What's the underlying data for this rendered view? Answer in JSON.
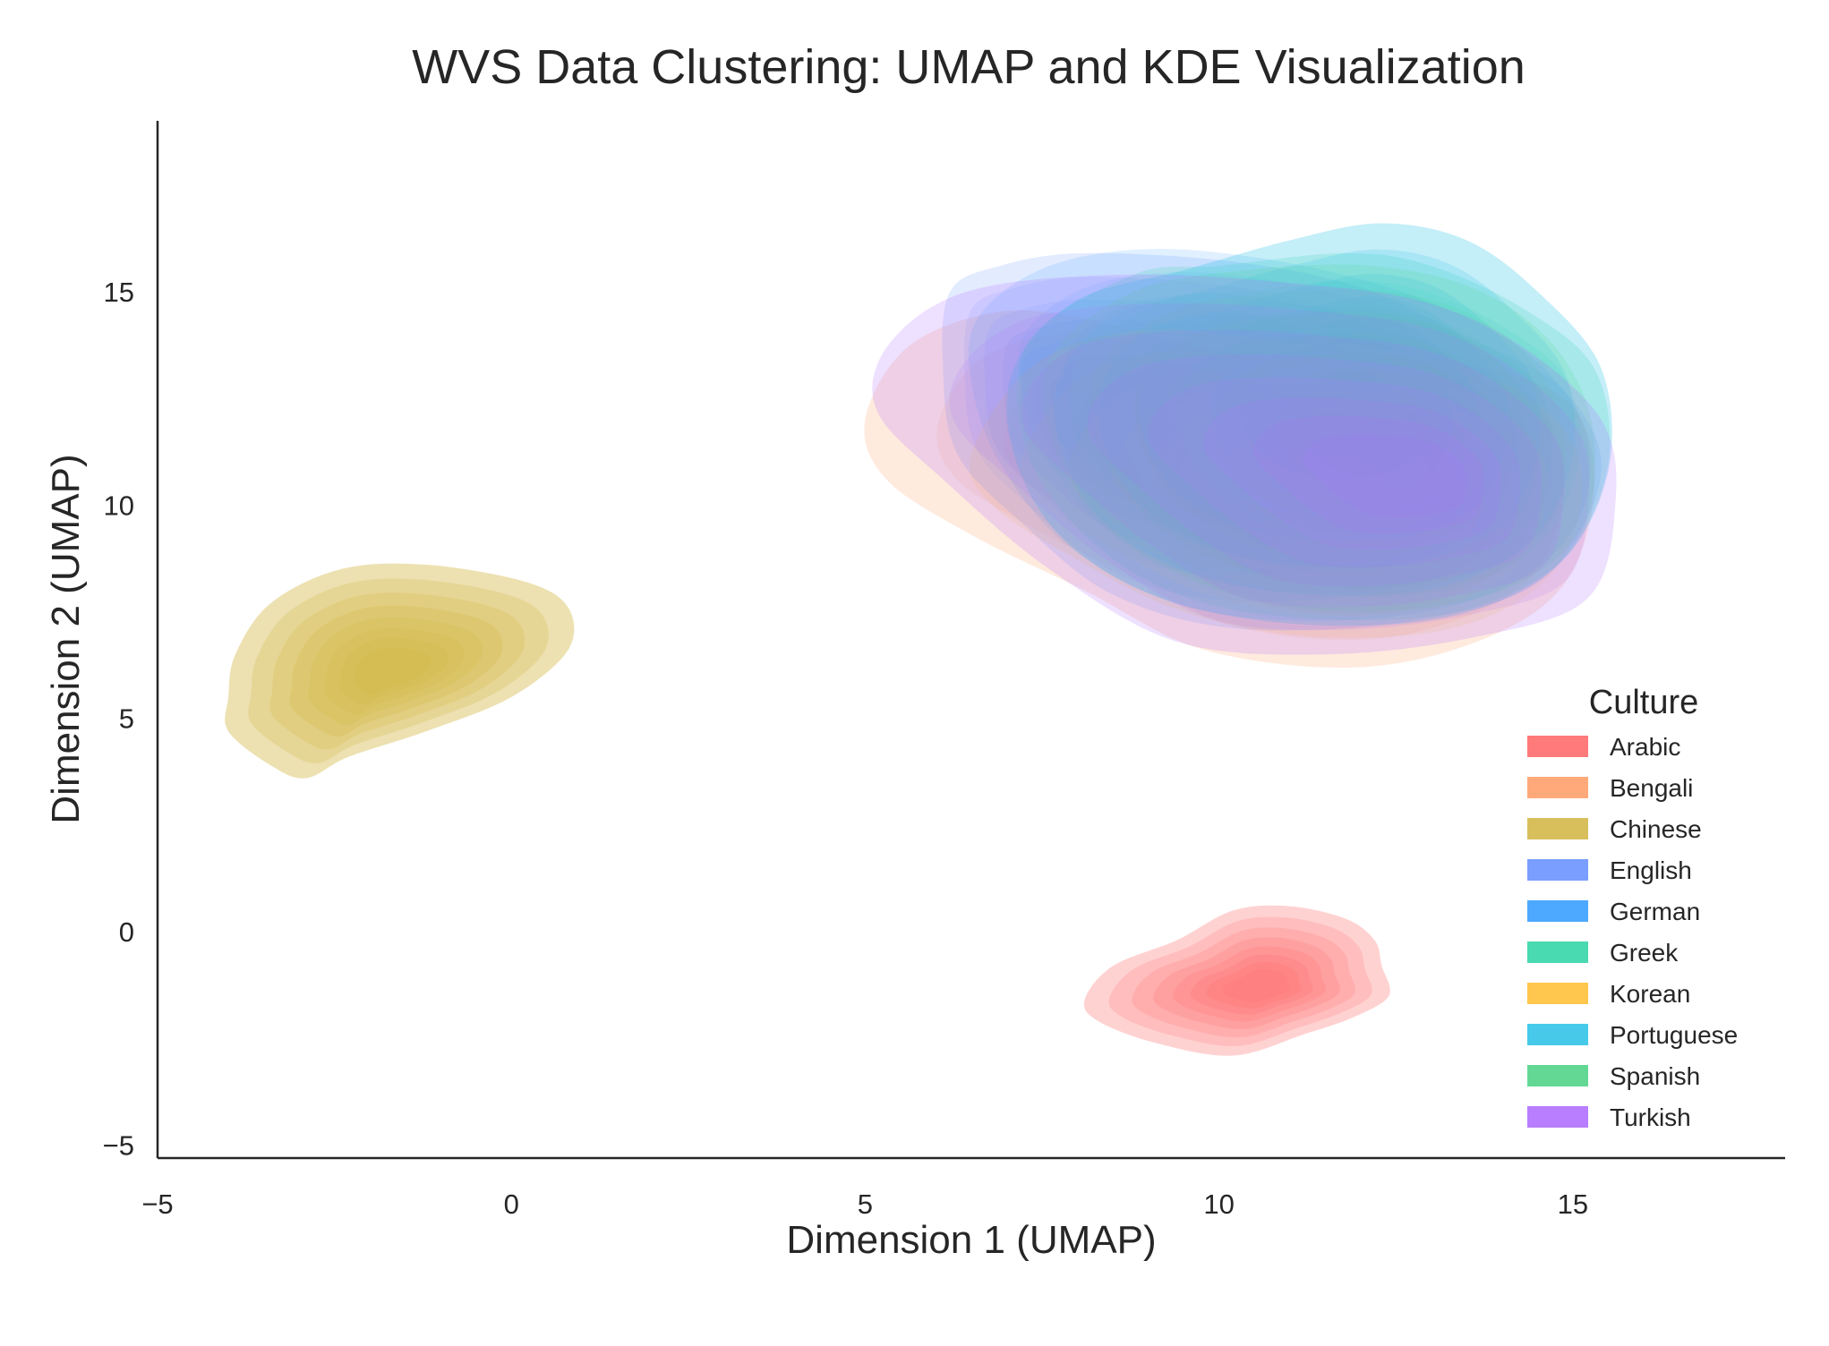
{
  "chart_data": {
    "type": "kde_density",
    "title": "WVS Data Clustering: UMAP and KDE Visualization",
    "xlabel": "Dimension 1 (UMAP)",
    "ylabel": "Dimension 2 (UMAP)",
    "xlim": [
      -5,
      18
    ],
    "ylim": [
      -5.3,
      19
    ],
    "xticks": [
      -5,
      0,
      5,
      10,
      15
    ],
    "yticks": [
      -5,
      0,
      5,
      10,
      15
    ],
    "xtick_labels": [
      "−5",
      "0",
      "5",
      "10",
      "15"
    ],
    "ytick_labels": [
      "−5",
      "0",
      "5",
      "10",
      "15"
    ],
    "grid": false,
    "legend": {
      "title": "Culture",
      "placement": "right"
    },
    "series": [
      {
        "name": "Arabic",
        "color": "#FF6B6B",
        "center": [
          10.6,
          -1.3
        ],
        "spread": [
          2.05,
          1.8
        ],
        "opacity": 0.36,
        "outline": [
          [
            8.1,
            -1.6
          ],
          [
            8.5,
            -0.8
          ],
          [
            9.4,
            -0.2
          ],
          [
            10.2,
            0.5
          ],
          [
            11.0,
            0.6
          ],
          [
            11.8,
            0.3
          ],
          [
            12.2,
            -0.2
          ],
          [
            12.3,
            -0.8
          ],
          [
            12.4,
            -1.5
          ],
          [
            11.9,
            -2.0
          ],
          [
            11.2,
            -2.4
          ],
          [
            10.2,
            -2.9
          ],
          [
            9.1,
            -2.6
          ],
          [
            8.3,
            -2.1
          ]
        ]
      },
      {
        "name": "Bengali",
        "color": "#FFA06B",
        "center": [
          12.3,
          10.8
        ],
        "spread": [
          5.0,
          5.0
        ],
        "opacity": 0.26,
        "outline": [
          [
            5.0,
            12.0
          ],
          [
            5.6,
            13.7
          ],
          [
            6.8,
            14.5
          ],
          [
            8.0,
            14.4
          ],
          [
            10.0,
            13.6
          ],
          [
            12.0,
            13.3
          ],
          [
            13.8,
            13.2
          ],
          [
            15.0,
            12.3
          ],
          [
            15.3,
            10.4
          ],
          [
            14.9,
            8.2
          ],
          [
            13.8,
            6.9
          ],
          [
            12.0,
            6.2
          ],
          [
            9.8,
            6.6
          ],
          [
            8.1,
            8.0
          ],
          [
            6.5,
            9.3
          ],
          [
            5.3,
            10.6
          ]
        ]
      },
      {
        "name": "Chinese",
        "color": "#D4B84A",
        "center": [
          -1.7,
          6.1
        ],
        "spread": [
          2.65,
          2.6
        ],
        "opacity": 0.5,
        "outline": [
          [
            -4.0,
            5.5
          ],
          [
            -3.9,
            6.5
          ],
          [
            -3.4,
            7.7
          ],
          [
            -2.4,
            8.5
          ],
          [
            -1.2,
            8.6
          ],
          [
            0.2,
            8.2
          ],
          [
            0.8,
            7.6
          ],
          [
            0.8,
            6.6
          ],
          [
            0.0,
            5.5
          ],
          [
            -1.2,
            4.7
          ],
          [
            -2.3,
            4.1
          ],
          [
            -2.9,
            3.6
          ],
          [
            -3.4,
            3.9
          ],
          [
            -4.0,
            4.7
          ]
        ]
      },
      {
        "name": "English",
        "color": "#6B94FF",
        "center": [
          8.3,
          11.9
        ],
        "spread": [
          6.5,
          6.0
        ],
        "opacity": 0.22,
        "outline": [
          [
            6.2,
            15.0
          ],
          [
            6.9,
            15.6
          ],
          [
            8.1,
            15.9
          ],
          [
            10.2,
            15.7
          ],
          [
            12.0,
            15.1
          ],
          [
            13.4,
            14.0
          ],
          [
            14.8,
            12.8
          ],
          [
            15.4,
            10.8
          ],
          [
            14.6,
            8.3
          ],
          [
            12.8,
            7.3
          ],
          [
            10.3,
            7.1
          ],
          [
            8.5,
            7.9
          ],
          [
            7.2,
            9.6
          ],
          [
            6.3,
            11.2
          ],
          [
            6.1,
            13.2
          ]
        ]
      },
      {
        "name": "German",
        "color": "#3AA0FF",
        "center": [
          11.5,
          12.1
        ],
        "spread": [
          5.5,
          5.5
        ],
        "opacity": 0.18,
        "outline": [
          [
            6.6,
            14.4
          ],
          [
            7.6,
            15.6
          ],
          [
            9.2,
            16.0
          ],
          [
            11.2,
            15.6
          ],
          [
            12.9,
            14.8
          ],
          [
            14.4,
            13.5
          ],
          [
            15.2,
            11.6
          ],
          [
            15.0,
            9.4
          ],
          [
            13.8,
            7.9
          ],
          [
            11.8,
            7.3
          ],
          [
            9.6,
            7.6
          ],
          [
            7.9,
            9.0
          ],
          [
            6.9,
            11.0
          ],
          [
            6.5,
            12.9
          ]
        ]
      },
      {
        "name": "Greek",
        "color": "#36D6A8",
        "center": [
          12.5,
          11.3
        ],
        "spread": [
          5.0,
          5.0
        ],
        "opacity": 0.24,
        "outline": [
          [
            7.3,
            13.8
          ],
          [
            8.8,
            15.4
          ],
          [
            10.0,
            15.6
          ],
          [
            11.8,
            15.9
          ],
          [
            13.0,
            15.6
          ],
          [
            14.3,
            14.6
          ],
          [
            15.3,
            13.2
          ],
          [
            15.5,
            11.0
          ],
          [
            14.9,
            8.8
          ],
          [
            13.6,
            7.6
          ],
          [
            11.9,
            7.3
          ],
          [
            9.8,
            7.7
          ],
          [
            8.3,
            9.0
          ],
          [
            7.3,
            11.2
          ]
        ]
      },
      {
        "name": "Korean",
        "color": "#FFC13A",
        "center": [
          11.6,
          10.5
        ],
        "spread": [
          4.5,
          4.5
        ],
        "opacity": 0.16,
        "outline": [
          [
            6.5,
            11.2
          ],
          [
            7.4,
            13.3
          ],
          [
            8.9,
            14.1
          ],
          [
            10.6,
            13.9
          ],
          [
            12.5,
            13.6
          ],
          [
            14.2,
            12.7
          ],
          [
            15.1,
            11.0
          ],
          [
            14.8,
            8.6
          ],
          [
            13.5,
            7.2
          ],
          [
            11.5,
            6.9
          ],
          [
            9.5,
            7.5
          ],
          [
            7.8,
            8.9
          ],
          [
            6.8,
            10.0
          ]
        ]
      },
      {
        "name": "Portuguese",
        "color": "#33C4E8",
        "center": [
          11.8,
          12.2
        ],
        "spread": [
          6.0,
          5.5
        ],
        "opacity": 0.34,
        "outline": [
          [
            7.1,
            13.2
          ],
          [
            8.0,
            14.8
          ],
          [
            9.5,
            15.5
          ],
          [
            11.0,
            16.2
          ],
          [
            12.3,
            16.6
          ],
          [
            13.5,
            16.2
          ],
          [
            14.5,
            15.0
          ],
          [
            15.4,
            13.2
          ],
          [
            15.5,
            10.8
          ],
          [
            14.8,
            8.6
          ],
          [
            13.3,
            7.4
          ],
          [
            11.2,
            7.2
          ],
          [
            9.2,
            7.8
          ],
          [
            7.8,
            9.2
          ],
          [
            7.1,
            11.2
          ]
        ]
      },
      {
        "name": "Spanish",
        "color": "#52D48A",
        "center": [
          12.3,
          11.5
        ],
        "spread": [
          5.0,
          5.0
        ],
        "opacity": 0.2,
        "outline": [
          [
            7.6,
            13.4
          ],
          [
            8.8,
            15.0
          ],
          [
            10.4,
            15.5
          ],
          [
            12.2,
            15.6
          ],
          [
            13.7,
            15.0
          ],
          [
            14.8,
            13.6
          ],
          [
            15.3,
            11.6
          ],
          [
            15.1,
            9.4
          ],
          [
            14.0,
            8.0
          ],
          [
            12.2,
            7.5
          ],
          [
            10.2,
            7.9
          ],
          [
            8.6,
            9.2
          ],
          [
            7.7,
            11.2
          ]
        ]
      },
      {
        "name": "Turkish",
        "color": "#B070FF",
        "center": [
          12.9,
          10.6
        ],
        "spread": [
          5.5,
          5.5
        ],
        "opacity": 0.26,
        "outline": [
          [
            5.2,
            13.4
          ],
          [
            5.9,
            14.6
          ],
          [
            7.0,
            15.2
          ],
          [
            9.0,
            15.4
          ],
          [
            11.0,
            15.2
          ],
          [
            12.8,
            14.8
          ],
          [
            14.2,
            13.8
          ],
          [
            15.4,
            12.0
          ],
          [
            15.6,
            10.0
          ],
          [
            15.2,
            7.8
          ],
          [
            13.6,
            6.9
          ],
          [
            11.5,
            6.5
          ],
          [
            9.4,
            6.8
          ],
          [
            7.6,
            8.5
          ],
          [
            6.1,
            10.6
          ],
          [
            5.2,
            12.1
          ]
        ]
      }
    ]
  }
}
